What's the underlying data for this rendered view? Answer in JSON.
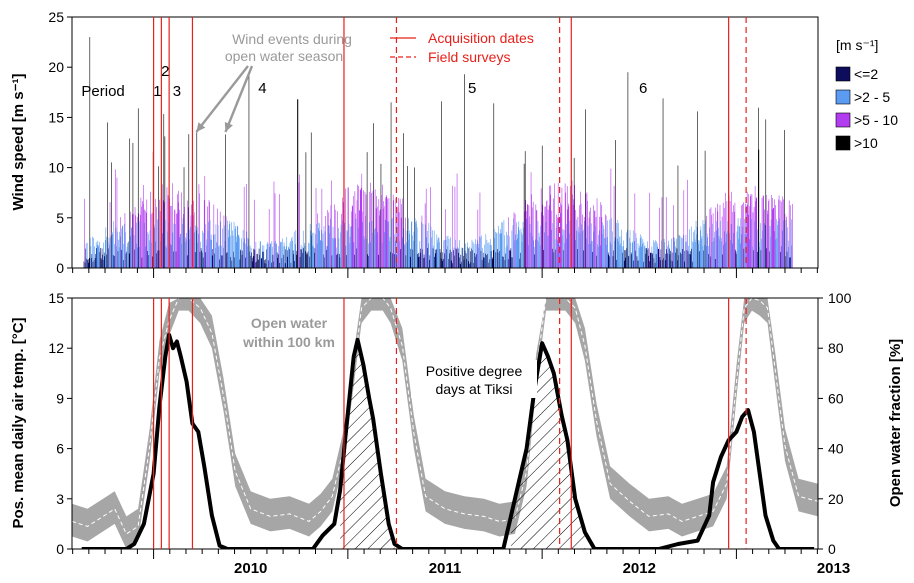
{
  "chart_data": [
    {
      "type": "bar",
      "panel": "wind-speed",
      "ylabel": "Wind speed [m s⁻¹]",
      "ylim": [
        0,
        25
      ],
      "yticks": [
        "0",
        "5",
        "10",
        "15",
        "20",
        "25"
      ],
      "xlim": [
        2009.58,
        2013.42
      ],
      "xticks": [
        "2010",
        "2011",
        "2012",
        "2013"
      ],
      "legend": {
        "title": "[m s⁻¹]",
        "placement": "right",
        "entries": [
          {
            "label": "<=2",
            "color": "#0d0d5c"
          },
          {
            "label": ">2 - 5",
            "color": "#5b9cf2"
          },
          {
            "label": ">5 - 10",
            "color": "#b23cf0"
          },
          {
            "label": ">10",
            "color": "#000000"
          }
        ]
      },
      "periods": [
        {
          "label": "Period",
          "x": 2009.74
        },
        {
          "label": "1",
          "x": 2010.02
        },
        {
          "label": "2",
          "x": 2010.06
        },
        {
          "label": "3",
          "x": 2010.12
        },
        {
          "label": "4",
          "x": 2010.56
        },
        {
          "label": "5",
          "x": 2011.64
        },
        {
          "label": "6",
          "x": 2012.52
        }
      ],
      "annotations": {
        "wind_events": [
          "Wind events during",
          "open water season"
        ],
        "acquisition_label": "Acquisition dates",
        "survey_label": "Field surveys"
      },
      "wind_event_arrows": [
        2010.22,
        2010.37
      ],
      "series_note_peaks": [
        {
          "x": 2009.67,
          "y": 23.0
        },
        {
          "x": 2009.76,
          "y": 14.5
        },
        {
          "x": 2009.92,
          "y": 15.9
        },
        {
          "x": 2010.22,
          "y": 13.5
        },
        {
          "x": 2010.37,
          "y": 13.3
        },
        {
          "x": 2010.49,
          "y": 19.5
        },
        {
          "x": 2010.74,
          "y": 16.8
        },
        {
          "x": 2010.81,
          "y": 13.5
        },
        {
          "x": 2011.22,
          "y": 16.5
        },
        {
          "x": 2011.48,
          "y": 16.6
        },
        {
          "x": 2011.6,
          "y": 19.3
        },
        {
          "x": 2011.75,
          "y": 16.4
        },
        {
          "x": 2012.22,
          "y": 15.8
        },
        {
          "x": 2012.44,
          "y": 19.5
        },
        {
          "x": 2012.62,
          "y": 16.9
        },
        {
          "x": 2012.8,
          "y": 15.6
        },
        {
          "x": 2013.15,
          "y": 14.8
        }
      ]
    },
    {
      "type": "line",
      "panel": "temperature-open-water",
      "ylabel": "Pos. mean daily air temp. [°C]",
      "y2label": "Open water fraction [%]",
      "ylim": [
        0,
        15
      ],
      "y2lim": [
        0,
        100
      ],
      "yticks": [
        "0",
        "3",
        "6",
        "9",
        "12",
        "15"
      ],
      "y2ticks": [
        "0",
        "20",
        "40",
        "60",
        "80",
        "100"
      ],
      "xlim": [
        2009.58,
        2013.42
      ],
      "xticks": [
        "2010",
        "2011",
        "2012",
        "2013"
      ],
      "annotations": {
        "open_water": [
          "Open water",
          "within 100 km"
        ],
        "pdd": [
          "Positive degree",
          "days at Tiksi"
        ]
      },
      "temperature_series": {
        "x": [
          2009.63,
          2009.86,
          2009.9,
          2009.95,
          2010.0,
          2010.03,
          2010.06,
          2010.08,
          2010.1,
          2010.12,
          2010.14,
          2010.17,
          2010.2,
          2010.23,
          2010.26,
          2010.3,
          2010.34,
          2010.38,
          2010.82,
          2010.87,
          2010.93,
          2010.96,
          2010.99,
          2011.03,
          2011.05,
          2011.08,
          2011.11,
          2011.13,
          2011.17,
          2011.21,
          2011.24,
          2011.28,
          2011.8,
          2011.84,
          2011.88,
          2011.92,
          2011.96,
          2012.0,
          2012.03,
          2012.06,
          2012.1,
          2012.13,
          2012.17,
          2012.22,
          2012.27,
          2012.6,
          2012.7,
          2012.8,
          2012.86,
          2012.88,
          2012.92,
          2012.96,
          2013.0,
          2013.03,
          2013.06,
          2013.09,
          2013.12,
          2013.15,
          2013.19,
          2013.22,
          2013.27,
          2013.4
        ],
        "y": [
          0,
          0,
          0.3,
          1.5,
          4.5,
          8.5,
          11.5,
          12.8,
          12.0,
          12.4,
          11.5,
          10.0,
          7.5,
          7.0,
          5.0,
          2.0,
          0.2,
          0,
          0,
          0.8,
          1.5,
          3.5,
          7.0,
          11.5,
          12.5,
          11.0,
          9.0,
          7.8,
          4.5,
          1.5,
          0.3,
          0,
          0,
          2.0,
          4.0,
          6.0,
          9.5,
          12.3,
          11.5,
          10.5,
          8.0,
          6.5,
          3.0,
          1.0,
          0,
          0,
          0.3,
          0.5,
          2.0,
          4.0,
          5.5,
          6.5,
          7.0,
          7.9,
          8.3,
          7.0,
          4.5,
          2.0,
          0.5,
          0,
          0,
          0
        ]
      },
      "open_water_series": {
        "x": [
          2009.58,
          2009.66,
          2009.74,
          2009.8,
          2009.86,
          2009.92,
          2009.98,
          2010.03,
          2010.08,
          2010.13,
          2010.18,
          2010.24,
          2010.3,
          2010.36,
          2010.42,
          2010.5,
          2010.6,
          2010.7,
          2010.8,
          2010.86,
          2010.92,
          2010.98,
          2011.03,
          2011.07,
          2011.12,
          2011.18,
          2011.22,
          2011.28,
          2011.34,
          2011.4,
          2011.5,
          2011.6,
          2011.7,
          2011.78,
          2011.86,
          2011.92,
          2011.97,
          2012.02,
          2012.07,
          2012.12,
          2012.17,
          2012.22,
          2012.28,
          2012.35,
          2012.45,
          2012.55,
          2012.65,
          2012.72,
          2012.8,
          2012.88,
          2012.95,
          2013.0,
          2013.04,
          2013.08,
          2013.12,
          2013.16,
          2013.2,
          2013.25,
          2013.32,
          2013.42
        ],
        "y": [
          10,
          8,
          12,
          15,
          5,
          8,
          40,
          75,
          90,
          100,
          100,
          95,
          85,
          60,
          30,
          15,
          12,
          13,
          10,
          14,
          20,
          40,
          70,
          95,
          100,
          100,
          95,
          80,
          45,
          20,
          15,
          13,
          12,
          10,
          11,
          30,
          70,
          100,
          100,
          100,
          95,
          80,
          50,
          25,
          18,
          12,
          13,
          10,
          12,
          14,
          25,
          65,
          95,
          100,
          98,
          95,
          70,
          40,
          20,
          18
        ]
      }
    }
  ],
  "acquisition_dates": [
    2010.0,
    2010.04,
    2010.08,
    2010.2,
    2010.98,
    2012.15,
    2012.96
  ],
  "field_surveys": [
    2011.25,
    2012.09,
    2013.05
  ]
}
